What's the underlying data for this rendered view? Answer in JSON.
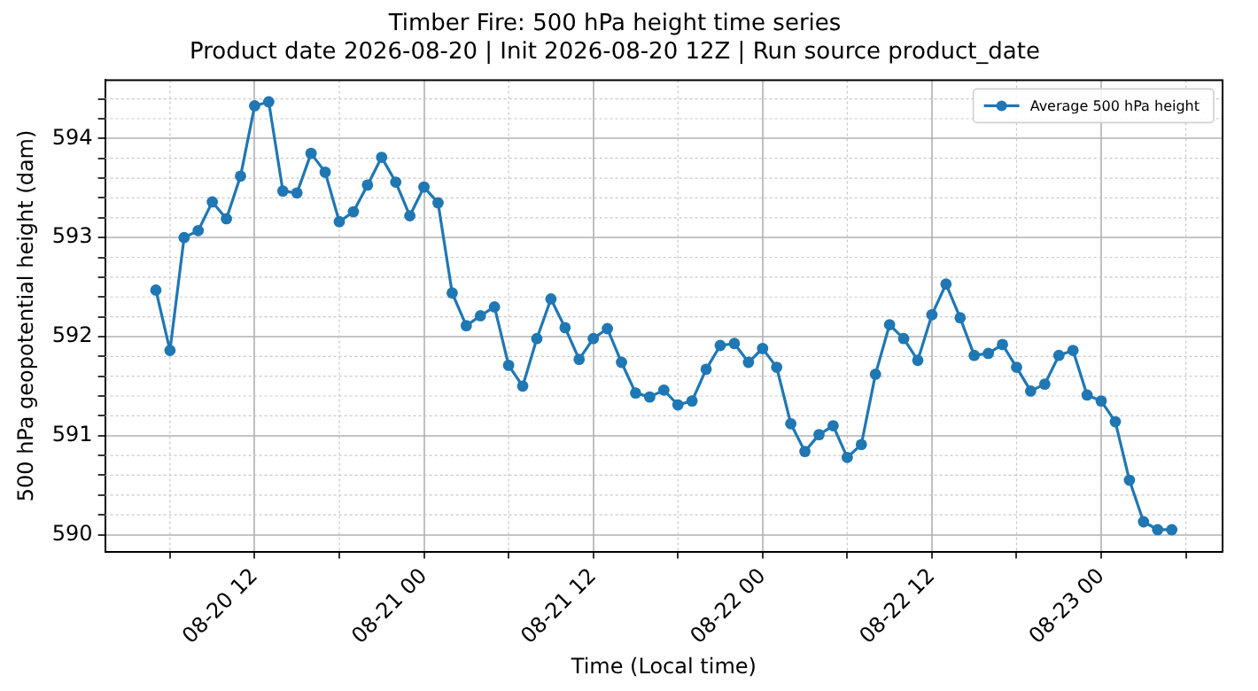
{
  "chart_data": {
    "type": "line",
    "title": "Timber Fire: 500 hPa height time series",
    "subtitle": "Product date 2026-08-20 | Init 2026-08-20 12Z | Run source product_date",
    "xlabel": "Time (Local time)",
    "ylabel": "500 hPa geopotential height (dam)",
    "x": [
      "2026-08-20T05:00",
      "2026-08-20T06:00",
      "2026-08-20T07:00",
      "2026-08-20T08:00",
      "2026-08-20T09:00",
      "2026-08-20T10:00",
      "2026-08-20T11:00",
      "2026-08-20T12:00",
      "2026-08-20T13:00",
      "2026-08-20T14:00",
      "2026-08-20T15:00",
      "2026-08-20T16:00",
      "2026-08-20T17:00",
      "2026-08-20T18:00",
      "2026-08-20T19:00",
      "2026-08-20T20:00",
      "2026-08-20T21:00",
      "2026-08-20T22:00",
      "2026-08-20T23:00",
      "2026-08-21T00:00",
      "2026-08-21T01:00",
      "2026-08-21T02:00",
      "2026-08-21T03:00",
      "2026-08-21T04:00",
      "2026-08-21T05:00",
      "2026-08-21T06:00",
      "2026-08-21T07:00",
      "2026-08-21T08:00",
      "2026-08-21T09:00",
      "2026-08-21T10:00",
      "2026-08-21T11:00",
      "2026-08-21T12:00",
      "2026-08-21T13:00",
      "2026-08-21T14:00",
      "2026-08-21T15:00",
      "2026-08-21T16:00",
      "2026-08-21T17:00",
      "2026-08-21T18:00",
      "2026-08-21T19:00",
      "2026-08-21T20:00",
      "2026-08-21T21:00",
      "2026-08-21T22:00",
      "2026-08-21T23:00",
      "2026-08-22T00:00",
      "2026-08-22T01:00",
      "2026-08-22T02:00",
      "2026-08-22T03:00",
      "2026-08-22T04:00",
      "2026-08-22T05:00",
      "2026-08-22T06:00",
      "2026-08-22T07:00",
      "2026-08-22T08:00",
      "2026-08-22T09:00",
      "2026-08-22T10:00",
      "2026-08-22T11:00",
      "2026-08-22T12:00",
      "2026-08-22T13:00",
      "2026-08-22T14:00",
      "2026-08-22T15:00",
      "2026-08-22T16:00",
      "2026-08-22T17:00",
      "2026-08-22T18:00",
      "2026-08-22T19:00",
      "2026-08-22T20:00",
      "2026-08-22T21:00",
      "2026-08-22T22:00",
      "2026-08-22T23:00",
      "2026-08-23T00:00",
      "2026-08-23T01:00",
      "2026-08-23T02:00",
      "2026-08-23T03:00",
      "2026-08-23T04:00",
      "2026-08-23T05:00"
    ],
    "series": [
      {
        "name": "Average 500 hPa height",
        "color": "#1f77b4",
        "values": [
          592.47,
          591.86,
          593.0,
          593.07,
          593.36,
          593.19,
          593.62,
          594.33,
          594.37,
          593.47,
          593.45,
          593.85,
          593.66,
          593.16,
          593.26,
          593.53,
          593.81,
          593.56,
          593.22,
          593.51,
          593.35,
          592.44,
          592.11,
          592.21,
          592.3,
          591.71,
          591.5,
          591.98,
          592.38,
          592.09,
          591.77,
          591.98,
          592.08,
          591.74,
          591.43,
          591.39,
          591.46,
          591.31,
          591.35,
          591.67,
          591.91,
          591.93,
          591.74,
          591.88,
          591.69,
          591.12,
          590.84,
          591.01,
          591.1,
          590.78,
          590.91,
          591.62,
          592.12,
          591.98,
          591.76,
          592.22,
          592.53,
          592.19,
          591.81,
          591.83,
          591.92,
          591.69,
          591.45,
          591.52,
          591.81,
          591.86,
          591.41,
          591.35,
          591.14,
          590.55,
          590.13,
          590.05,
          590.05
        ]
      }
    ],
    "xlim": [
      "2026-08-20T01:24",
      "2026-08-23T08:36"
    ],
    "xticks": [
      {
        "value": "2026-08-20T06:00",
        "label": null
      },
      {
        "value": "2026-08-20T12:00",
        "label": "08-20 12"
      },
      {
        "value": "2026-08-20T18:00",
        "label": null
      },
      {
        "value": "2026-08-21T00:00",
        "label": "08-21 00"
      },
      {
        "value": "2026-08-21T06:00",
        "label": null
      },
      {
        "value": "2026-08-21T12:00",
        "label": "08-21 12"
      },
      {
        "value": "2026-08-21T18:00",
        "label": null
      },
      {
        "value": "2026-08-22T00:00",
        "label": "08-22 00"
      },
      {
        "value": "2026-08-22T06:00",
        "label": null
      },
      {
        "value": "2026-08-22T12:00",
        "label": "08-22 12"
      },
      {
        "value": "2026-08-22T18:00",
        "label": null
      },
      {
        "value": "2026-08-23T00:00",
        "label": "08-23 00"
      },
      {
        "value": "2026-08-23T06:00",
        "label": null
      }
    ],
    "ylim": [
      589.83,
      594.59
    ],
    "yticks": [
      590,
      {
        "value": 590.2,
        "label": null
      },
      {
        "value": 590.4,
        "label": null
      },
      {
        "value": 590.6,
        "label": null
      },
      {
        "value": 590.8,
        "label": null
      },
      591,
      {
        "value": 591.2,
        "label": null
      },
      {
        "value": 591.4,
        "label": null
      },
      {
        "value": 591.6,
        "label": null
      },
      {
        "value": 591.8,
        "label": null
      },
      592,
      {
        "value": 592.2,
        "label": null
      },
      {
        "value": 592.4,
        "label": null
      },
      {
        "value": 592.6,
        "label": null
      },
      {
        "value": 592.8,
        "label": null
      },
      593,
      {
        "value": 593.2,
        "label": null
      },
      {
        "value": 593.4,
        "label": null
      },
      {
        "value": 593.6,
        "label": null
      },
      {
        "value": 593.8,
        "label": null
      },
      594,
      {
        "value": 594.2,
        "label": null
      },
      {
        "value": 594.4,
        "label": null
      }
    ],
    "grid": true,
    "legend": "top right",
    "marker": "circle",
    "line_style": "solid"
  }
}
